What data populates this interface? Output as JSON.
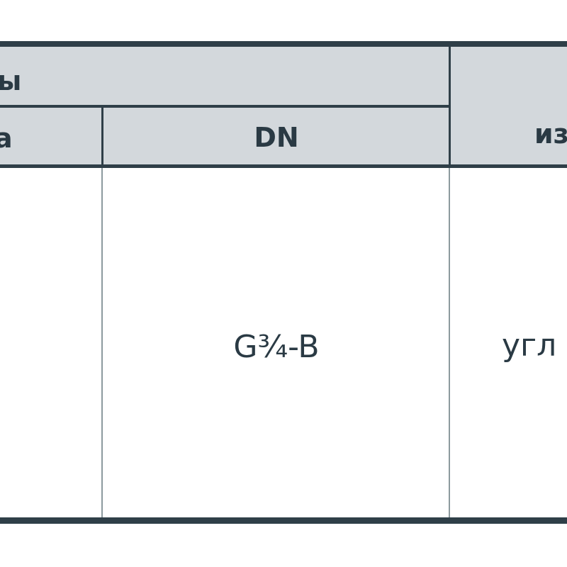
{
  "table": {
    "header_row1": {
      "left_group_label": "ы",
      "right_label_partial": ""
    },
    "header_row2": {
      "col1_label": "а",
      "col2_label": "DN",
      "col3_label": "из"
    },
    "body_row": {
      "col2_value": "G¾-B",
      "col3_value": "угл"
    },
    "colors": {
      "header_bg": "#d3d8dc",
      "border": "#2f3f48",
      "text": "#2a3a44"
    }
  }
}
